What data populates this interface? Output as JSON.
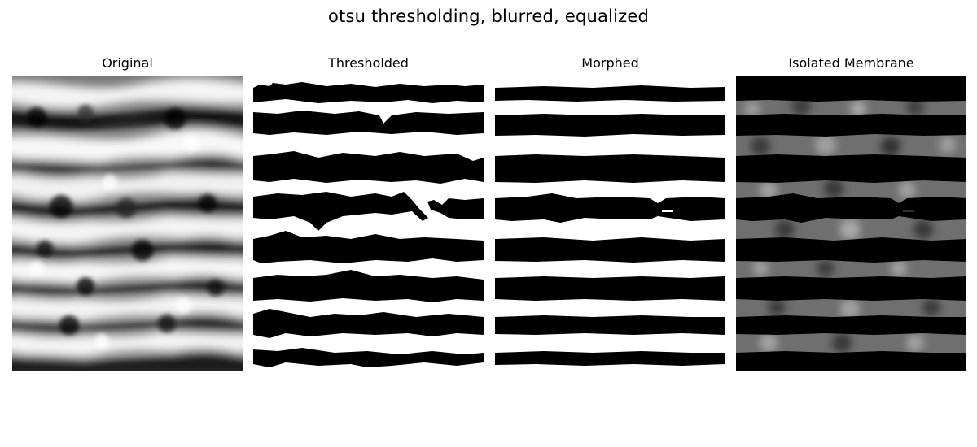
{
  "figure": {
    "title": "otsu thresholding, blurred, equalized"
  },
  "panels": [
    {
      "title": "Original",
      "kind": "grayscale-texture"
    },
    {
      "title": "Thresholded",
      "kind": "binary-stripes-noisy"
    },
    {
      "title": "Morphed",
      "kind": "binary-stripes-smooth"
    },
    {
      "title": "Isolated Membrane",
      "kind": "masked-grayscale"
    }
  ],
  "colors": {
    "background": "#ffffff",
    "foreground_black": "#000000",
    "foreground_white": "#ffffff"
  }
}
